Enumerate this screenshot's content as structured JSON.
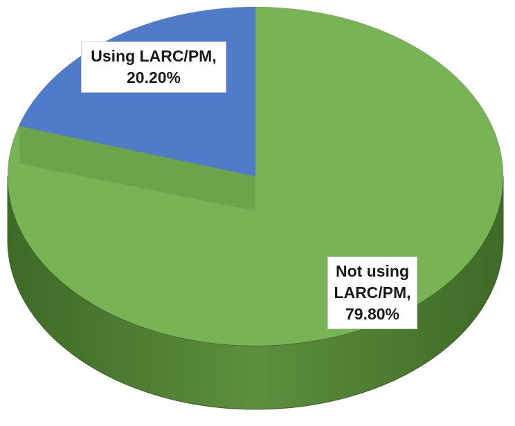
{
  "chart_data": {
    "type": "pie",
    "three_d": true,
    "categories": [
      "Using LARC/PM,",
      "Not using LARC/PM,"
    ],
    "values": [
      20.2,
      79.8
    ],
    "value_labels": [
      "20.20%",
      "79.80%"
    ],
    "colors": [
      "#4f7bc8",
      "#78b356"
    ]
  }
}
